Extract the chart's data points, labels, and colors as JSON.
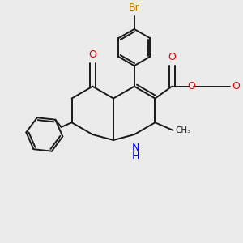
{
  "bg_color": "#EBEBEB",
  "bond_color": "#1a1a1a",
  "bond_width": 1.4,
  "N_color": "#0000EE",
  "O_color": "#EE0000",
  "Br_color": "#CC7700",
  "figsize": [
    3.0,
    3.0
  ],
  "dpi": 100,
  "xlim": [
    0,
    10
  ],
  "ylim": [
    0,
    10
  ]
}
